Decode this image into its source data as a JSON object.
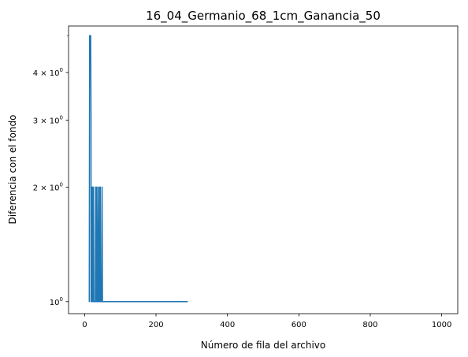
{
  "chart_data": {
    "type": "line",
    "title": "16_04_Germanio_68_1cm_Ganancia_50",
    "xlabel": "Número de fila del archivo",
    "ylabel": "Diferencia con el fondo",
    "yscale": "log",
    "xlim": [
      -45,
      1045
    ],
    "ylim": [
      0.93,
      5.3
    ],
    "grid": false,
    "x_ticks": [
      0,
      200,
      400,
      600,
      800,
      1000
    ],
    "x_tick_labels": [
      "0",
      "200",
      "400",
      "600",
      "800",
      "1000"
    ],
    "y_ticks": [
      1,
      2,
      3,
      4
    ],
    "y_tick_labels": [
      {
        "base": "10",
        "exp": "0",
        "prefix": ""
      },
      {
        "base": "10",
        "exp": "0",
        "prefix": "2 × "
      },
      {
        "base": "10",
        "exp": "0",
        "prefix": "3 × "
      },
      {
        "base": "10",
        "exp": "0",
        "prefix": "4 × "
      }
    ],
    "y_minor_ticks": [
      5
    ],
    "series": [
      {
        "color": "#1f77b4",
        "x": [
          12,
          13,
          14,
          15,
          16,
          17,
          18,
          18,
          19,
          20,
          21,
          22,
          23,
          24,
          25,
          26,
          27,
          28,
          29,
          30,
          31,
          32,
          33,
          34,
          35,
          36,
          37,
          38,
          39,
          40,
          41,
          42,
          43,
          44,
          45,
          46,
          47,
          48,
          49,
          50,
          51,
          52,
          53,
          54,
          56,
          58,
          62,
          66,
          70,
          72,
          75,
          78,
          82,
          86,
          88,
          92,
          95,
          98,
          102,
          106,
          118,
          122,
          126,
          132,
          136,
          140,
          152,
          156,
          190,
          194,
          255,
          259,
          285,
          289
        ],
        "y": [
          1,
          1,
          5,
          5,
          5,
          5,
          3,
          1,
          2,
          1,
          2,
          2,
          1,
          1,
          2,
          1,
          1,
          1,
          1,
          1,
          2,
          1,
          1,
          2,
          1,
          1,
          1,
          2,
          1,
          1,
          1,
          2,
          1,
          2,
          1,
          1,
          1,
          1,
          2,
          1,
          1,
          1,
          1,
          1,
          1,
          1,
          1,
          1,
          1,
          1,
          1,
          1,
          1,
          1,
          1,
          1,
          1,
          1,
          1,
          1,
          1,
          1,
          1,
          1,
          1,
          1,
          1,
          1,
          1,
          1,
          1,
          1,
          1,
          1
        ]
      }
    ]
  }
}
